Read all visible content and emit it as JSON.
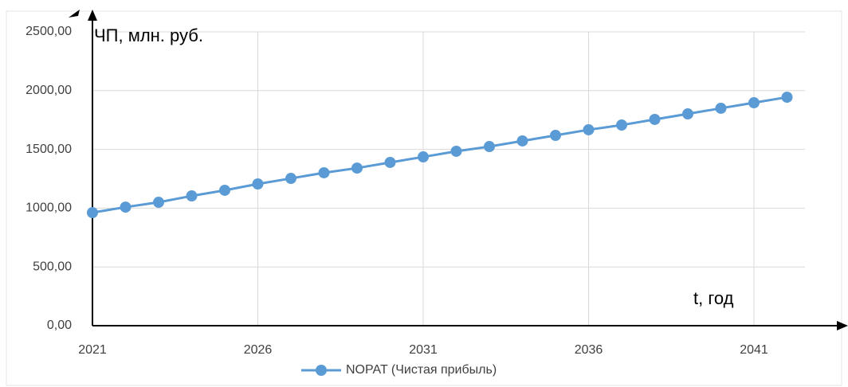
{
  "chart_data": {
    "type": "line",
    "x": [
      2021,
      2022,
      2023,
      2024,
      2025,
      2026,
      2027,
      2028,
      2029,
      2030,
      2031,
      2032,
      2033,
      2034,
      2035,
      2036,
      2037,
      2038,
      2039,
      2040,
      2041,
      2042
    ],
    "series": [
      {
        "name": "NOPAT (Чистая прибыль)",
        "color": "#5b9bd5",
        "values": [
          962,
          1009,
          1050,
          1104,
          1152,
          1206,
          1253,
          1301,
          1341,
          1389,
          1436,
          1484,
          1524,
          1572,
          1619,
          1667,
          1707,
          1755,
          1802,
          1850,
          1897,
          1944
        ]
      }
    ],
    "xlim": [
      2021,
      2042
    ],
    "xticks": [
      2021,
      2026,
      2031,
      2036,
      2041
    ],
    "ylim": [
      0,
      2500
    ],
    "yticks": [
      {
        "value": 0,
        "label": "0,00"
      },
      {
        "value": 500,
        "label": "500,00"
      },
      {
        "value": 1000,
        "label": "1000,00"
      },
      {
        "value": 1500,
        "label": "1500,00"
      },
      {
        "value": 2000,
        "label": "2000,00"
      },
      {
        "value": 2500,
        "label": "2500,00"
      }
    ],
    "grid": true,
    "annotations": [
      "ЧП, млн. руб.",
      "t, год"
    ],
    "legend": "bottom"
  }
}
